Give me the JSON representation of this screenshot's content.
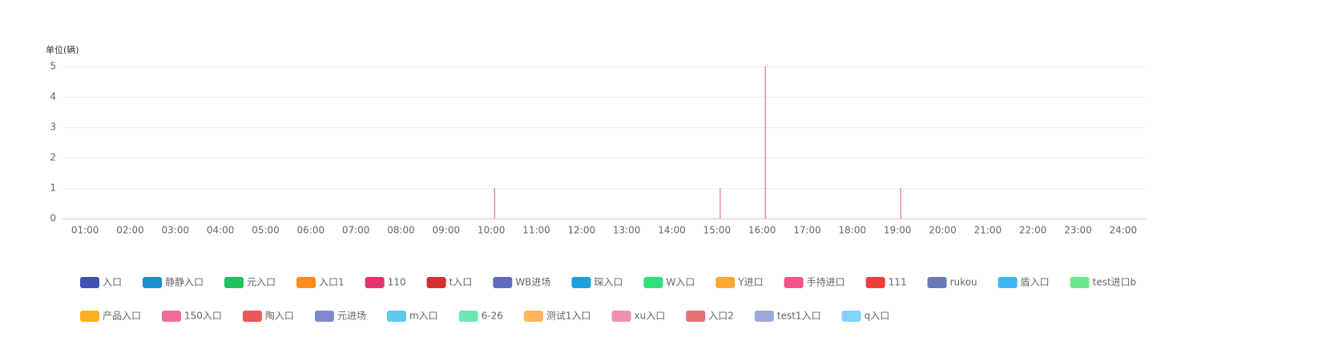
{
  "chart_data": {
    "type": "bar",
    "y_unit_label": "单位(辆)",
    "categories": [
      "01:00",
      "02:00",
      "03:00",
      "04:00",
      "05:00",
      "06:00",
      "07:00",
      "08:00",
      "09:00",
      "10:00",
      "11:00",
      "12:00",
      "13:00",
      "14:00",
      "15:00",
      "16:00",
      "17:00",
      "18:00",
      "19:00",
      "20:00",
      "21:00",
      "22:00",
      "23:00",
      "24:00"
    ],
    "ylim": [
      0,
      5
    ],
    "yticks": [
      0,
      1,
      2,
      3,
      4,
      5
    ],
    "grid": true,
    "series": [
      {
        "name": "入口",
        "color": "#3f51b5",
        "values": [
          0,
          0,
          0,
          0,
          0,
          0,
          0,
          0,
          0,
          0,
          0,
          0,
          0,
          0,
          0,
          0,
          0,
          0,
          0,
          0,
          0,
          0,
          0,
          0
        ]
      },
      {
        "name": "静静入口",
        "color": "#1a8ccf",
        "values": [
          0,
          0,
          0,
          0,
          0,
          0,
          0,
          0,
          0,
          0,
          0,
          0,
          0,
          0,
          0,
          0,
          0,
          0,
          0,
          0,
          0,
          0,
          0,
          0
        ]
      },
      {
        "name": "元入口",
        "color": "#20c05c",
        "values": [
          0,
          0,
          0,
          0,
          0,
          0,
          0,
          0,
          0,
          0,
          0,
          0,
          0,
          0,
          0,
          0,
          0,
          0,
          0,
          0,
          0,
          0,
          0,
          0
        ]
      },
      {
        "name": "入口1",
        "color": "#ff8a1f",
        "values": [
          0,
          0,
          0,
          0,
          0,
          0,
          0,
          0,
          0,
          0,
          0,
          0,
          0,
          0,
          0,
          0,
          0,
          0,
          0,
          0,
          0,
          0,
          0,
          0
        ]
      },
      {
        "name": "110",
        "color": "#e5336e",
        "values": [
          0,
          0,
          0,
          0,
          0,
          0,
          0,
          0,
          0,
          0,
          0,
          0,
          0,
          0,
          0,
          0,
          0,
          0,
          0,
          0,
          0,
          0,
          0,
          0
        ]
      },
      {
        "name": "t入口",
        "color": "#d63031",
        "values": [
          0,
          0,
          0,
          0,
          0,
          0,
          0,
          0,
          0,
          0,
          0,
          0,
          0,
          0,
          0,
          0,
          0,
          0,
          0,
          0,
          0,
          0,
          0,
          0
        ]
      },
      {
        "name": "WB进场",
        "color": "#5c6bc0",
        "values": [
          0,
          0,
          0,
          0,
          0,
          0,
          0,
          0,
          0,
          0,
          0,
          0,
          0,
          0,
          0,
          0,
          0,
          0,
          0,
          0,
          0,
          0,
          0,
          0
        ]
      },
      {
        "name": "琛入口",
        "color": "#1e9fe0",
        "values": [
          0,
          0,
          0,
          0,
          0,
          0,
          0,
          0,
          0,
          0,
          0,
          0,
          0,
          0,
          0,
          0,
          0,
          0,
          0,
          0,
          0,
          0,
          0,
          0
        ]
      },
      {
        "name": "W入口",
        "color": "#2ee07a",
        "values": [
          0,
          0,
          0,
          0,
          0,
          0,
          0,
          0,
          0,
          0,
          0,
          0,
          0,
          0,
          0,
          0,
          0,
          0,
          0,
          0,
          0,
          0,
          0,
          0
        ]
      },
      {
        "name": "Y进口",
        "color": "#ffa733",
        "values": [
          0,
          0,
          0,
          0,
          0,
          0,
          0,
          0,
          0,
          0,
          0,
          0,
          0,
          0,
          0,
          0,
          0,
          0,
          0,
          0,
          0,
          0,
          0,
          0
        ]
      },
      {
        "name": "手持进口",
        "color": "#f25487",
        "values": [
          0,
          0,
          0,
          0,
          0,
          0,
          0,
          0,
          0,
          0,
          0,
          0,
          0,
          0,
          0,
          0,
          0,
          0,
          0,
          0,
          0,
          0,
          0,
          0
        ]
      },
      {
        "name": "111",
        "color": "#ef3b3b",
        "values": [
          0,
          0,
          0,
          0,
          0,
          0,
          0,
          0,
          0,
          0,
          0,
          0,
          0,
          0,
          0,
          0,
          0,
          0,
          0,
          0,
          0,
          0,
          0,
          0
        ]
      },
      {
        "name": "rukou",
        "color": "#6a7ab5",
        "values": [
          0,
          0,
          0,
          0,
          0,
          0,
          0,
          0,
          0,
          0,
          0,
          0,
          0,
          0,
          0,
          0,
          0,
          0,
          0,
          0,
          0,
          0,
          0,
          0
        ]
      },
      {
        "name": "盾入口",
        "color": "#3db8f5",
        "values": [
          0,
          0,
          0,
          0,
          0,
          0,
          0,
          0,
          0,
          0,
          0,
          0,
          0,
          0,
          0,
          0,
          0,
          0,
          0,
          0,
          0,
          0,
          0,
          0
        ]
      },
      {
        "name": "test进口b",
        "color": "#6ee88f",
        "values": [
          0,
          0,
          0,
          0,
          0,
          0,
          0,
          0,
          0,
          0,
          0,
          0,
          0,
          0,
          0,
          0,
          0,
          0,
          0,
          0,
          0,
          0,
          0,
          0
        ]
      },
      {
        "name": "产品入口",
        "color": "#ffb020",
        "values": [
          0,
          0,
          0,
          0,
          0,
          0,
          0,
          0,
          0,
          0,
          0,
          0,
          0,
          0,
          0,
          0,
          0,
          0,
          0,
          0,
          0,
          0,
          0,
          0
        ]
      },
      {
        "name": "150入口",
        "color": "#f06d98",
        "values": [
          0,
          0,
          0,
          0,
          0,
          0,
          0,
          0,
          0,
          1,
          0,
          0,
          0,
          0,
          1,
          5,
          0,
          0,
          1,
          0,
          0,
          0,
          0,
          0
        ]
      },
      {
        "name": "陶入口",
        "color": "#eb5757",
        "values": [
          0,
          0,
          0,
          0,
          0,
          0,
          0,
          0,
          0,
          0,
          0,
          0,
          0,
          0,
          0,
          0,
          0,
          0,
          0,
          0,
          0,
          0,
          0,
          0
        ]
      },
      {
        "name": "元进场",
        "color": "#8088cc",
        "values": [
          0,
          0,
          0,
          0,
          0,
          0,
          0,
          0,
          0,
          0,
          0,
          0,
          0,
          0,
          0,
          0,
          0,
          0,
          0,
          0,
          0,
          0,
          0,
          0
        ]
      },
      {
        "name": "m入口",
        "color": "#5ccaf0",
        "values": [
          0,
          0,
          0,
          0,
          0,
          0,
          0,
          0,
          0,
          0,
          0,
          0,
          0,
          0,
          0,
          0,
          0,
          0,
          0,
          0,
          0,
          0,
          0,
          0
        ]
      },
      {
        "name": "6-26",
        "color": "#6ee8b0",
        "values": [
          0,
          0,
          0,
          0,
          0,
          0,
          0,
          0,
          0,
          0,
          0,
          0,
          0,
          0,
          0,
          0,
          0,
          0,
          0,
          0,
          0,
          0,
          0,
          0
        ]
      },
      {
        "name": "测试1入口",
        "color": "#ffb65c",
        "values": [
          0,
          0,
          0,
          0,
          0,
          0,
          0,
          0,
          0,
          0,
          0,
          0,
          0,
          0,
          0,
          0,
          0,
          0,
          0,
          0,
          0,
          0,
          0,
          0
        ]
      },
      {
        "name": "xu入口",
        "color": "#f28fb0",
        "values": [
          0,
          0,
          0,
          0,
          0,
          0,
          0,
          0,
          0,
          0,
          0,
          0,
          0,
          0,
          0,
          0,
          0,
          0,
          0,
          0,
          0,
          0,
          0,
          0
        ]
      },
      {
        "name": "入口2",
        "color": "#e57373",
        "values": [
          0,
          0,
          0,
          0,
          0,
          0,
          0,
          0,
          0,
          0,
          0,
          0,
          0,
          0,
          0,
          0,
          0,
          0,
          0,
          0,
          0,
          0,
          0,
          0
        ]
      },
      {
        "name": "test1入口",
        "color": "#9fa8da",
        "values": [
          0,
          0,
          0,
          0,
          0,
          0,
          0,
          0,
          0,
          0,
          0,
          0,
          0,
          0,
          0,
          0,
          0,
          0,
          0,
          0,
          0,
          0,
          0,
          0
        ]
      },
      {
        "name": "q入口",
        "color": "#81d4fa",
        "values": [
          0,
          0,
          0,
          0,
          0,
          0,
          0,
          0,
          0,
          0,
          0,
          0,
          0,
          0,
          0,
          0,
          0,
          0,
          0,
          0,
          0,
          0,
          0,
          0
        ]
      }
    ]
  }
}
